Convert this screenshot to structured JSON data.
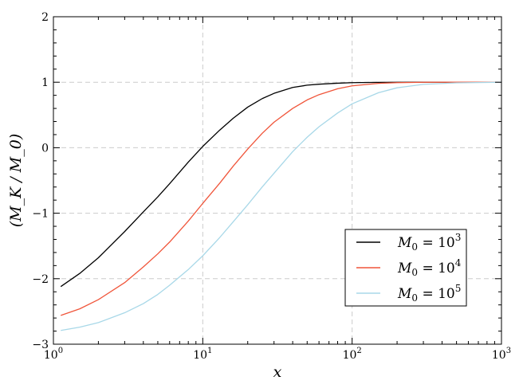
{
  "chart_data": {
    "type": "line",
    "title": "",
    "xlabel": "x",
    "ylabel": "(M_K / M_0)",
    "xscale": "log",
    "xlim": [
      1,
      1000
    ],
    "ylim": [
      -3,
      2
    ],
    "x_ticks": [
      {
        "value": 1,
        "base": "10",
        "exp": "0"
      },
      {
        "value": 10,
        "base": "10",
        "exp": "1"
      },
      {
        "value": 100,
        "base": "10",
        "exp": "2"
      },
      {
        "value": 1000,
        "base": "10",
        "exp": "3"
      }
    ],
    "y_ticks": [
      {
        "value": -3,
        "label": "−3"
      },
      {
        "value": -2,
        "label": "−2"
      },
      {
        "value": -1,
        "label": "−1"
      },
      {
        "value": 0,
        "label": "0"
      },
      {
        "value": 1,
        "label": "1"
      },
      {
        "value": 2,
        "label": "2"
      }
    ],
    "grid": true,
    "legend_position": "lower-right",
    "series": [
      {
        "name_main": "M",
        "name_sub": "0",
        "name_eq": " = 10",
        "name_exp": "3",
        "color": "#000000",
        "x": [
          1.12,
          1.5,
          2,
          3,
          4,
          5,
          6,
          8,
          10,
          13,
          16,
          20,
          25,
          30,
          40,
          50,
          60,
          80,
          100,
          150,
          200,
          300,
          500,
          1000
        ],
        "y": [
          -2.12,
          -1.92,
          -1.68,
          -1.28,
          -0.98,
          -0.75,
          -0.55,
          -0.22,
          0.02,
          0.27,
          0.45,
          0.62,
          0.75,
          0.83,
          0.92,
          0.955,
          0.97,
          0.985,
          0.993,
          0.998,
          0.999,
          1.0,
          1.0,
          1.0
        ]
      },
      {
        "name_main": "M",
        "name_sub": "0",
        "name_eq": " = 10",
        "name_exp": "4",
        "color": "#f0553a",
        "x": [
          1.12,
          1.5,
          2,
          3,
          4,
          5,
          6,
          8,
          10,
          13,
          16,
          20,
          25,
          30,
          40,
          50,
          60,
          80,
          100,
          150,
          200,
          300,
          500,
          1000
        ],
        "y": [
          -2.56,
          -2.46,
          -2.32,
          -2.06,
          -1.82,
          -1.62,
          -1.44,
          -1.12,
          -0.85,
          -0.54,
          -0.28,
          -0.02,
          0.22,
          0.39,
          0.6,
          0.73,
          0.81,
          0.9,
          0.945,
          0.983,
          0.993,
          0.999,
          1.0,
          1.0
        ]
      },
      {
        "name_main": "M",
        "name_sub": "0",
        "name_eq": " = 10",
        "name_exp": "5",
        "color": "#a8d8e8",
        "x": [
          1.12,
          1.5,
          2,
          3,
          4,
          5,
          6,
          8,
          10,
          13,
          16,
          20,
          25,
          30,
          40,
          50,
          60,
          80,
          100,
          150,
          200,
          300,
          500,
          1000
        ],
        "y": [
          -2.79,
          -2.74,
          -2.67,
          -2.52,
          -2.38,
          -2.24,
          -2.1,
          -1.86,
          -1.65,
          -1.37,
          -1.13,
          -0.87,
          -0.6,
          -0.39,
          -0.06,
          0.16,
          0.32,
          0.53,
          0.67,
          0.84,
          0.915,
          0.967,
          0.99,
          1.0
        ]
      }
    ]
  }
}
